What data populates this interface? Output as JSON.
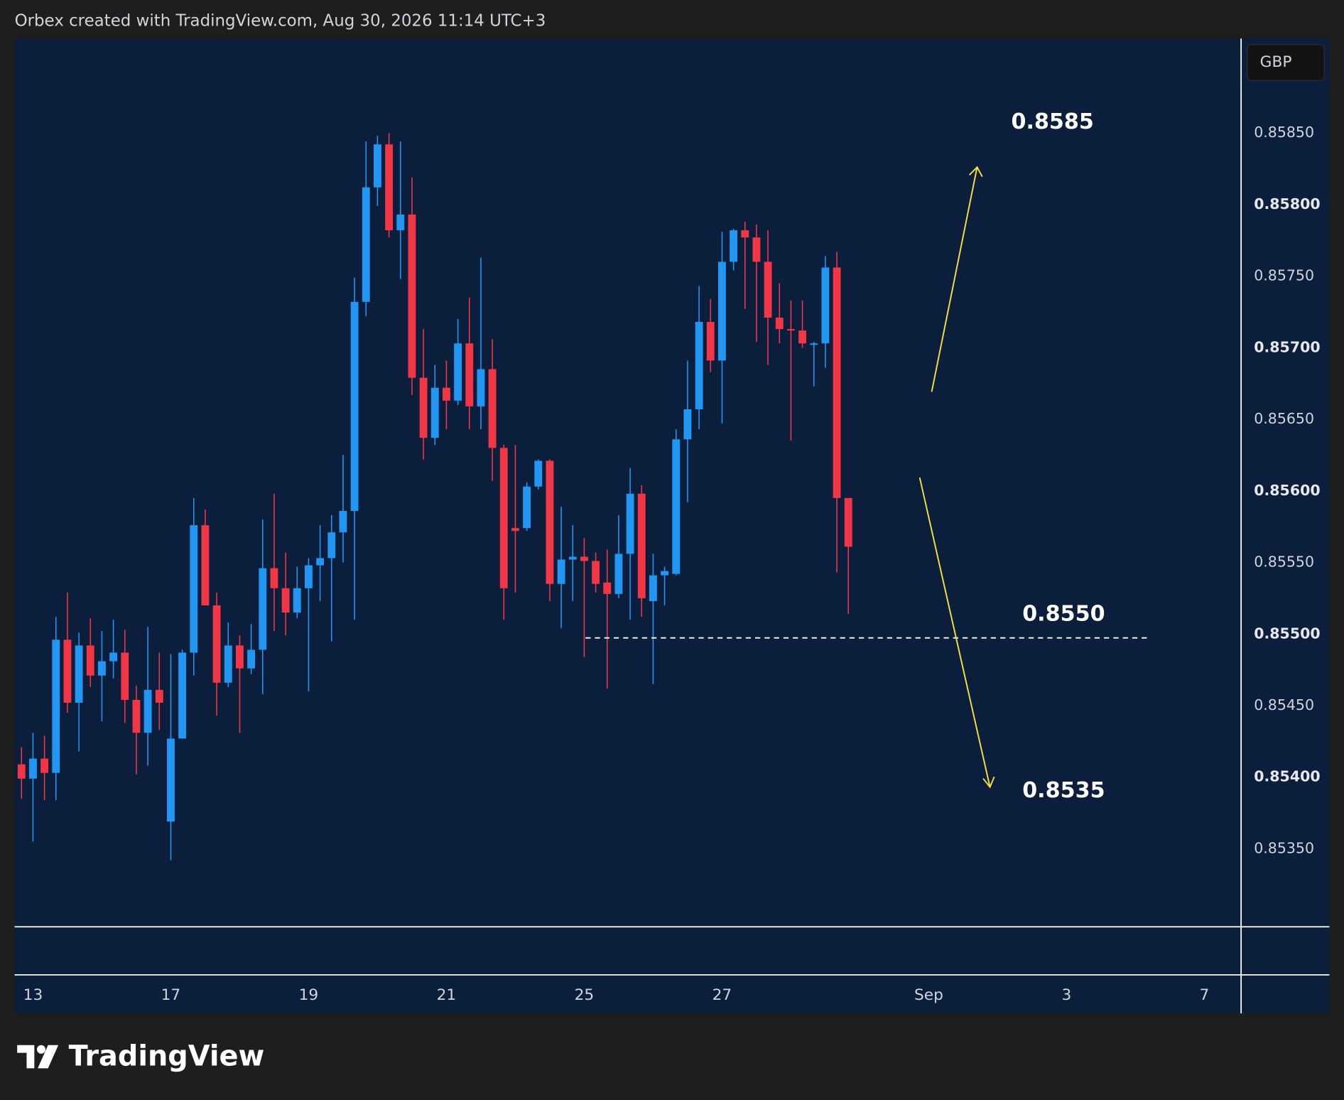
{
  "header": "Orbex created with TradingView.com, Aug 30, 2026 11:14 UTC+3",
  "currency_button": "GBP",
  "logo": "TradingView",
  "chart_data": {
    "type": "candlestick",
    "up_color": "#2196f3",
    "down_color": "#f23645",
    "grid": false,
    "annotations": [
      "0.8585",
      "0.8550",
      "0.8535"
    ],
    "open": [
      0.85409,
      0.85399,
      0.85413,
      0.85403,
      0.85496,
      0.85452,
      0.85492,
      0.85471,
      0.85481,
      0.85487,
      0.85454,
      0.85431,
      0.85461,
      0.85369,
      0.85427,
      0.85487,
      0.85576,
      0.8552,
      0.85466,
      0.85492,
      0.85476,
      0.85489,
      0.85546,
      0.85532,
      0.85515,
      0.85532,
      0.85548,
      0.85553,
      0.85571,
      0.85586,
      0.85732,
      0.85812,
      0.85842,
      0.85782,
      0.85793,
      0.85679,
      0.85637,
      0.85672,
      0.85663,
      0.85703,
      0.85659,
      0.85685,
      0.8563,
      0.85574,
      0.85574,
      0.85603,
      0.85621,
      0.85535,
      0.85552,
      0.85554,
      0.85551,
      0.85536,
      0.85528,
      0.85556,
      0.85598,
      0.85523,
      0.85541,
      0.85542,
      0.85636,
      0.85657,
      0.85718,
      0.85691,
      0.8576,
      0.85782,
      0.85777,
      0.8576,
      0.85721,
      0.85713,
      0.85712,
      0.85702,
      0.85703,
      0.85756,
      0.85595
    ],
    "high": [
      0.85421,
      0.85431,
      0.85429,
      0.85512,
      0.85529,
      0.85501,
      0.85511,
      0.85502,
      0.8551,
      0.85503,
      0.85464,
      0.85505,
      0.85487,
      0.85486,
      0.85489,
      0.85595,
      0.85587,
      0.85529,
      0.85508,
      0.85499,
      0.85507,
      0.8558,
      0.85598,
      0.85557,
      0.85547,
      0.85553,
      0.85576,
      0.85583,
      0.85625,
      0.85749,
      0.85844,
      0.85848,
      0.8585,
      0.85844,
      0.85819,
      0.85713,
      0.85688,
      0.85691,
      0.8572,
      0.85735,
      0.85763,
      0.85706,
      0.85632,
      0.85632,
      0.85606,
      0.85622,
      0.85622,
      0.85589,
      0.85576,
      0.85567,
      0.85557,
      0.85559,
      0.85583,
      0.85616,
      0.85604,
      0.85556,
      0.85547,
      0.85643,
      0.85691,
      0.85743,
      0.85734,
      0.85781,
      0.85783,
      0.85788,
      0.85786,
      0.85782,
      0.85745,
      0.85733,
      0.85733,
      0.85704,
      0.85764,
      0.85767,
      0.85595
    ],
    "low": [
      0.85385,
      0.85355,
      0.85384,
      0.85384,
      0.85445,
      0.85418,
      0.85463,
      0.85439,
      0.85469,
      0.85438,
      0.85402,
      0.85408,
      0.85433,
      0.85342,
      0.85427,
      0.85471,
      0.8552,
      0.85443,
      0.85463,
      0.85431,
      0.85472,
      0.85458,
      0.85502,
      0.85499,
      0.85511,
      0.8546,
      0.85523,
      0.85495,
      0.8555,
      0.8551,
      0.85722,
      0.85799,
      0.85777,
      0.85748,
      0.85667,
      0.85622,
      0.85632,
      0.85643,
      0.8566,
      0.85643,
      0.85643,
      0.85607,
      0.8551,
      0.85529,
      0.85572,
      0.85601,
      0.85523,
      0.85504,
      0.85523,
      0.85484,
      0.85529,
      0.85462,
      0.85525,
      0.8551,
      0.85512,
      0.85465,
      0.8552,
      0.85541,
      0.85592,
      0.85643,
      0.85683,
      0.85647,
      0.85754,
      0.85727,
      0.85704,
      0.85688,
      0.85703,
      0.85635,
      0.857,
      0.85673,
      0.85686,
      0.85543,
      0.85514
    ],
    "close": [
      0.85399,
      0.85413,
      0.85403,
      0.85496,
      0.85452,
      0.85492,
      0.85471,
      0.85481,
      0.85487,
      0.85454,
      0.85431,
      0.85461,
      0.85452,
      0.85427,
      0.85487,
      0.85576,
      0.8552,
      0.85466,
      0.85492,
      0.85476,
      0.85489,
      0.85546,
      0.85532,
      0.85515,
      0.85532,
      0.85548,
      0.85553,
      0.85571,
      0.85586,
      0.85732,
      0.85812,
      0.85842,
      0.85782,
      0.85793,
      0.85679,
      0.85637,
      0.85672,
      0.85663,
      0.85703,
      0.85659,
      0.85685,
      0.8563,
      0.85532,
      0.85572,
      0.85603,
      0.85621,
      0.85535,
      0.85552,
      0.85554,
      0.85551,
      0.85535,
      0.85528,
      0.85556,
      0.85598,
      0.85525,
      0.85541,
      0.85544,
      0.85636,
      0.85657,
      0.85718,
      0.85691,
      0.8576,
      0.85782,
      0.85777,
      0.8576,
      0.85721,
      0.85713,
      0.85712,
      0.85703,
      0.85703,
      0.85756,
      0.85595,
      0.85561
    ],
    "xlim": [
      -0.6,
      106.2
    ],
    "xticks": [
      {
        "value": 1,
        "label": "13"
      },
      {
        "value": 13,
        "label": "17"
      },
      {
        "value": 25,
        "label": "19"
      },
      {
        "value": 37,
        "label": "21"
      },
      {
        "value": 49,
        "label": "25"
      },
      {
        "value": 61,
        "label": "27"
      },
      {
        "value": 79,
        "label": "Sep"
      },
      {
        "value": 91,
        "label": "3"
      },
      {
        "value": 103,
        "label": "7"
      }
    ],
    "ylim": [
      0.852955,
      0.859159
    ],
    "yticks": [
      {
        "value": 0.8535,
        "label": "0.85350"
      },
      {
        "value": 0.854,
        "label": "0.85400"
      },
      {
        "value": 0.8545,
        "label": "0.85450"
      },
      {
        "value": 0.855,
        "label": "0.85500"
      },
      {
        "value": 0.8555,
        "label": "0.85550"
      },
      {
        "value": 0.856,
        "label": "0.85600"
      },
      {
        "value": 0.8565,
        "label": "0.85650"
      },
      {
        "value": 0.857,
        "label": "0.85700"
      },
      {
        "value": 0.8575,
        "label": "0.85750"
      },
      {
        "value": 0.858,
        "label": "0.85800"
      },
      {
        "value": 0.8585,
        "label": "0.85850"
      }
    ]
  }
}
